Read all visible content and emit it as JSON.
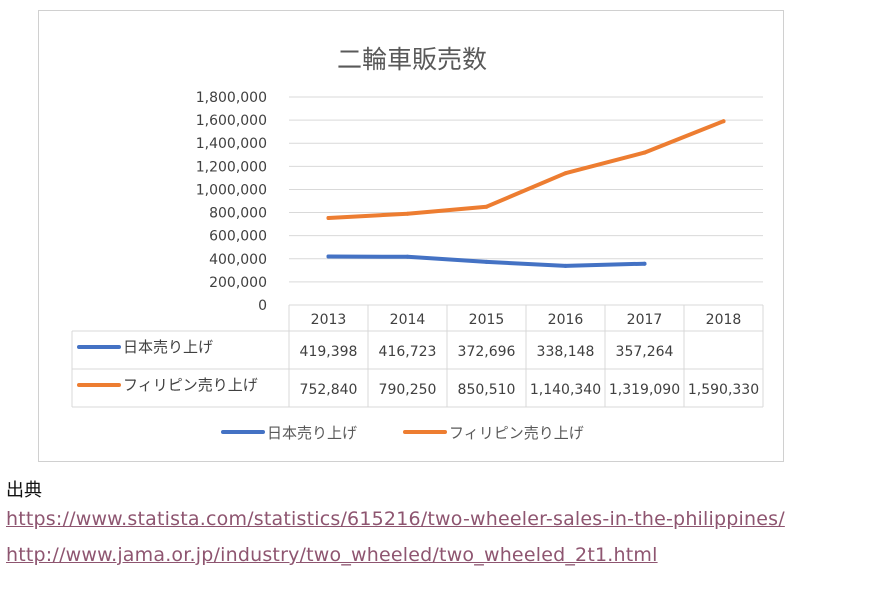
{
  "chart_data": {
    "type": "line",
    "title": "二輪車販売数",
    "categories": [
      "2013",
      "2014",
      "2015",
      "2016",
      "2017",
      "2018"
    ],
    "ylim": [
      0,
      1800000
    ],
    "yticks": [
      "0",
      "200,000",
      "400,000",
      "600,000",
      "800,000",
      "1,000,000",
      "1,200,000",
      "1,400,000",
      "1,600,000",
      "1,800,000"
    ],
    "grid": true,
    "legend_position": "bottom",
    "data_table": true,
    "series": [
      {
        "name": "日本売り上げ",
        "color": "#4472c4",
        "values": [
          419398,
          416723,
          372696,
          338148,
          357264,
          null
        ],
        "labels": [
          "419,398",
          "416,723",
          "372,696",
          "338,148",
          "357,264",
          ""
        ]
      },
      {
        "name": "フィリピン売り上げ",
        "color": "#ed7d31",
        "values": [
          752840,
          790250,
          850510,
          1140340,
          1319090,
          1590330
        ],
        "labels": [
          "752,840",
          "790,250",
          "850,510",
          "1,140,340",
          "1,319,090",
          "1,590,330"
        ]
      }
    ]
  },
  "source": {
    "label": "出典",
    "links": [
      "https://www.statista.com/statistics/615216/two-wheeler-sales-in-the-philippines/",
      "http://www.jama.or.jp/industry/two_wheeled/two_wheeled_2t1.html"
    ]
  }
}
